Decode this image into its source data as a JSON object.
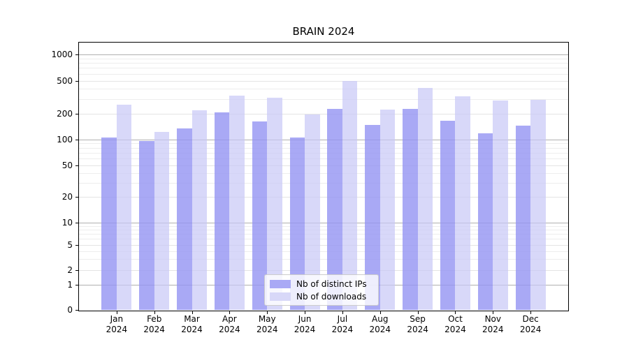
{
  "title": "BRAIN 2024",
  "legend": {
    "items": [
      {
        "label": "Nb of distinct IPs",
        "color": "#a9a9f5"
      },
      {
        "label": "Nb of downloads",
        "color": "#d8d8f8"
      }
    ]
  },
  "y_axis": {
    "tick_labels": [
      "0",
      "1",
      "2",
      "5",
      "10",
      "20",
      "50",
      "100",
      "200",
      "500",
      "1000"
    ]
  },
  "x_axis": {
    "months": [
      "Jan",
      "Feb",
      "Mar",
      "Apr",
      "May",
      "Jun",
      "Jul",
      "Aug",
      "Sep",
      "Oct",
      "Nov",
      "Dec"
    ],
    "year": "2024"
  },
  "colors": {
    "bar_ips": "rgba(148,148,242,0.8)",
    "bar_downloads": "rgba(199,199,246,0.7)",
    "grid_major": "#b0b0b0",
    "grid_minor": "#e4e4e4",
    "grid_minor_faint": "#ededed",
    "axis": "#000000"
  },
  "chart_data": {
    "type": "bar",
    "title": "BRAIN 2024",
    "categories": [
      "Jan 2024",
      "Feb 2024",
      "Mar 2024",
      "Apr 2024",
      "May 2024",
      "Jun 2024",
      "Jul 2024",
      "Aug 2024",
      "Sep 2024",
      "Oct 2024",
      "Nov 2024",
      "Dec 2024"
    ],
    "series": [
      {
        "name": "Nb of distinct IPs",
        "values": [
          106,
          95,
          133,
          205,
          161,
          106,
          230,
          147,
          228,
          164,
          117,
          144
        ]
      },
      {
        "name": "Nb of downloads",
        "values": [
          254,
          123,
          217,
          327,
          311,
          196,
          500,
          224,
          411,
          321,
          285,
          296
        ]
      }
    ],
    "xlabel": "",
    "ylabel": "",
    "yscale": "symlog",
    "y_ticks": [
      0,
      1,
      2,
      5,
      10,
      20,
      50,
      100,
      200,
      500,
      1000
    ],
    "ylim": [
      0,
      1400
    ],
    "grid": true,
    "legend_position": "lower-center"
  }
}
